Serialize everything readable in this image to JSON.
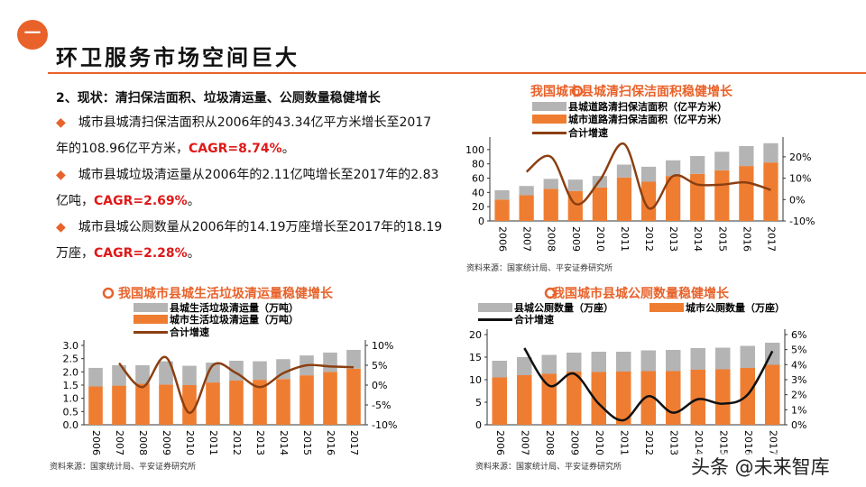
{
  "header": {
    "badge": "一",
    "title": "环卫服务市场空间巨大"
  },
  "subtitle": "2、现状：清扫保洁面积、垃圾清运量、公厕数量稳健增长",
  "bullets": [
    {
      "text": "城市县城清扫保洁面积从2006年的43.34亿平方米增长至2017年的108.96亿平方米，",
      "cagr": "CAGR=8.74%",
      "end": "。"
    },
    {
      "text": "城市县城垃圾清运量从2006年的2.11亿吨增长至2017年的2.83亿吨，",
      "cagr": "CAGR=2.69%",
      "end": "。"
    },
    {
      "text": "城市县城公厕数量从2006年的14.19万座增长至2017年的18.19万座，",
      "cagr": "CAGR=2.28%",
      "end": "。"
    }
  ],
  "colors": {
    "accent": "#e8622a",
    "gray": "#b4b4b4",
    "orange": "#ef7d31",
    "line_brown": "#8b3f12",
    "line_black": "#111111",
    "red": "#e01818"
  },
  "watermark": "头条 @未来智库",
  "chart_data": [
    {
      "type": "bar+line",
      "title": "我国城市县城清扫保洁面积稳健增长",
      "source": "资料来源：国家统计局、平安证券研究所",
      "categories": [
        "2006",
        "2007",
        "2008",
        "2009",
        "2010",
        "2011",
        "2012",
        "2013",
        "2014",
        "2015",
        "2016",
        "2017"
      ],
      "stacked": true,
      "series": [
        {
          "name": "县城道路清扫保洁面积（亿平方米）",
          "axis": "left",
          "values": [
            13,
            13,
            14,
            16,
            16,
            18,
            21,
            22,
            25,
            26,
            28,
            27
          ]
        },
        {
          "name": "城市道路清扫保洁面积（亿平方米）",
          "axis": "left",
          "values": [
            30,
            36,
            45,
            42,
            47,
            61,
            55,
            63,
            66,
            71,
            77,
            82
          ]
        },
        {
          "name": "合计增速",
          "axis": "right",
          "type": "line",
          "values": [
            null,
            13,
            20,
            -2,
            9,
            26,
            -4,
            11,
            7,
            7,
            8,
            4.5
          ]
        }
      ],
      "ylim_left": [
        0,
        110
      ],
      "yticks_left": [
        "0",
        "20",
        "40",
        "60",
        "80",
        "100"
      ],
      "ylim_right": [
        -10,
        26.7
      ],
      "yticks_right": [
        "-10%",
        "0%",
        "10%",
        "20%"
      ]
    },
    {
      "type": "bar+line",
      "title": "我国城市县城生活垃圾清运量稳健增长",
      "source": "资料来源：国家统计局、平安证券研究所",
      "categories": [
        "2006",
        "2007",
        "2008",
        "2009",
        "2010",
        "2011",
        "2012",
        "2013",
        "2014",
        "2015",
        "2016",
        "2017"
      ],
      "stacked": true,
      "series": [
        {
          "name": "县城生活垃圾清运量（万吨）",
          "axis": "left",
          "values": [
            0.7,
            0.77,
            0.7,
            0.88,
            0.73,
            0.75,
            0.75,
            0.7,
            0.75,
            0.75,
            0.73,
            0.71
          ]
        },
        {
          "name": "城市生活垃圾清运量（万吨）",
          "axis": "left",
          "values": [
            1.45,
            1.48,
            1.55,
            1.52,
            1.5,
            1.6,
            1.67,
            1.7,
            1.73,
            1.87,
            2.0,
            2.12
          ]
        },
        {
          "name": "合计增速",
          "axis": "right",
          "type": "line",
          "values": [
            null,
            5.5,
            -0.5,
            7,
            -7,
            5,
            3,
            -0.5,
            3,
            5,
            4.7,
            4.5
          ]
        }
      ],
      "ylim_left": [
        0,
        3
      ],
      "yticks_left": [
        "0.0",
        "0.5",
        "1.0",
        "1.5",
        "2.0",
        "2.5",
        "3.0"
      ],
      "ylim_right": [
        -10,
        10
      ],
      "yticks_right": [
        "-10%",
        "-5%",
        "0%",
        "5%",
        "10%"
      ]
    },
    {
      "type": "bar+line",
      "title": "我国城市县城公厕数量稳健增长",
      "source": "资料来源：国家统计局、平安证券研究所",
      "categories": [
        "2006",
        "2007",
        "2008",
        "2009",
        "2010",
        "2011",
        "2012",
        "2013",
        "2014",
        "2015",
        "2016",
        "2017"
      ],
      "stacked": true,
      "series": [
        {
          "name": "县城公厕数量（万座）",
          "axis": "left",
          "values": [
            3.7,
            4,
            4.2,
            4.2,
            4.5,
            4.4,
            4.6,
            4.7,
            4.8,
            4.8,
            4.9,
            4.9
          ]
        },
        {
          "name": "城市公厕数量（万座）",
          "axis": "left",
          "values": [
            10.5,
            11,
            11.3,
            11.8,
            11.7,
            11.8,
            11.9,
            11.9,
            12.2,
            12.3,
            12.6,
            13.3
          ]
        },
        {
          "name": "合计增速",
          "axis": "right",
          "type": "line",
          "values": [
            null,
            5.1,
            2.6,
            3.4,
            1.4,
            0.3,
            1.9,
            0.8,
            1.7,
            1.4,
            2,
            4.9
          ]
        }
      ],
      "ylim_left": [
        0,
        20
      ],
      "yticks_left": [
        "0",
        "5",
        "10",
        "15",
        "20"
      ],
      "ylim_right": [
        0,
        6
      ],
      "yticks_right": [
        "0%",
        "1%",
        "2%",
        "3%",
        "4%",
        "5%",
        "6%"
      ]
    }
  ]
}
